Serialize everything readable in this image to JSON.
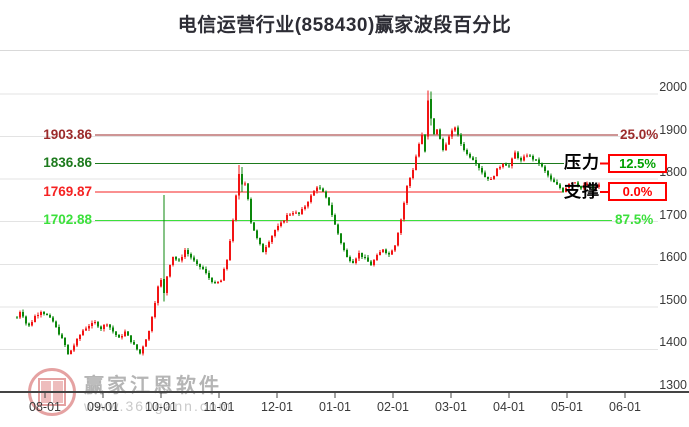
{
  "title": "电信运营行业(858430)赢家波段百分比",
  "annotations": {
    "resistance_label": "压力",
    "support_label": "支撑"
  },
  "levels": [
    {
      "label": "1903.86",
      "price": 1903.86,
      "pct": "25.0%",
      "style": "plain",
      "line_color": "#9c2b2b",
      "label_color": "#9c2b2b",
      "pct_color": "#9c2b2b"
    },
    {
      "label": "1836.86",
      "price": 1836.86,
      "pct": "12.5%",
      "style": "boxed",
      "tag": "压力",
      "line_color": "#1d7a1d",
      "label_color": "#1d7a1d",
      "pct_color": "#00a000"
    },
    {
      "label": "1769.87",
      "price": 1769.87,
      "pct": "0.0%",
      "style": "boxed",
      "tag": "支撑",
      "line_color": "#f52222",
      "label_color": "#f52222",
      "pct_color": "#ff0000"
    },
    {
      "label": "1702.88",
      "price": 1702.88,
      "pct": "87.5%",
      "style": "plain",
      "line_color": "#3ce03c",
      "label_color": "#3ce03c",
      "pct_color": "#3ce03c"
    }
  ],
  "watermark": {
    "brand": "赢家江恩软件",
    "url": "www.360gann.com",
    "logo_color": "#e5a2a2"
  },
  "chart_data": {
    "type": "candlestick",
    "title": "电信运营行业(858430)赢家波段百分比",
    "grid": true,
    "legend_position": "none",
    "up_color": "#f21414",
    "down_color": "#0c870c",
    "axis_color": "#444444",
    "grid_color": "#e3e3e3",
    "x_axis": {
      "tick_labels": [
        "08-01",
        "09-01",
        "10-01",
        "11-01",
        "12-01",
        "01-01",
        "02-01",
        "03-01",
        "04-01",
        "05-01",
        "06-01"
      ]
    },
    "y_axis": {
      "tick_labels": [
        2000,
        1900,
        1800,
        1700,
        1600,
        1500,
        1400,
        1300
      ],
      "min": 1300,
      "max": 2008
    },
    "candle_count": 195,
    "close_path_keyframes": [
      [
        0,
        1475
      ],
      [
        1,
        1490
      ],
      [
        2,
        1480
      ],
      [
        3,
        1462
      ],
      [
        4,
        1455
      ],
      [
        6,
        1478
      ],
      [
        8,
        1490
      ],
      [
        10,
        1480
      ],
      [
        12,
        1465
      ],
      [
        14,
        1438
      ],
      [
        16,
        1410
      ],
      [
        17,
        1388
      ],
      [
        18,
        1398
      ],
      [
        20,
        1422
      ],
      [
        22,
        1445
      ],
      [
        24,
        1456
      ],
      [
        26,
        1463
      ],
      [
        28,
        1450
      ],
      [
        30,
        1461
      ],
      [
        32,
        1442
      ],
      [
        34,
        1426
      ],
      [
        36,
        1441
      ],
      [
        38,
        1420
      ],
      [
        40,
        1400
      ],
      [
        41,
        1391
      ],
      [
        42,
        1408
      ],
      [
        44,
        1442
      ],
      [
        45,
        1478
      ],
      [
        46,
        1512
      ],
      [
        47,
        1546
      ],
      [
        48,
        1562
      ],
      [
        50,
        1572
      ],
      [
        51,
        1601
      ],
      [
        52,
        1618
      ],
      [
        54,
        1606
      ],
      [
        56,
        1633
      ],
      [
        58,
        1616
      ],
      [
        60,
        1598
      ],
      [
        62,
        1589
      ],
      [
        64,
        1568
      ],
      [
        66,
        1553
      ],
      [
        68,
        1562
      ],
      [
        70,
        1611
      ],
      [
        72,
        1701
      ],
      [
        73,
        1760
      ],
      [
        76,
        1790
      ],
      [
        77,
        1756
      ],
      [
        78,
        1700
      ],
      [
        80,
        1660
      ],
      [
        82,
        1630
      ],
      [
        84,
        1655
      ],
      [
        86,
        1680
      ],
      [
        88,
        1695
      ],
      [
        90,
        1715
      ],
      [
        92,
        1722
      ],
      [
        94,
        1718
      ],
      [
        96,
        1737
      ],
      [
        98,
        1760
      ],
      [
        100,
        1783
      ],
      [
        102,
        1769
      ],
      [
        104,
        1741
      ],
      [
        106,
        1693
      ],
      [
        108,
        1651
      ],
      [
        110,
        1616
      ],
      [
        112,
        1606
      ],
      [
        114,
        1626
      ],
      [
        116,
        1613
      ],
      [
        118,
        1599
      ],
      [
        120,
        1619
      ],
      [
        122,
        1636
      ],
      [
        124,
        1623
      ],
      [
        126,
        1646
      ],
      [
        128,
        1706
      ],
      [
        130,
        1783
      ],
      [
        132,
        1823
      ],
      [
        134,
        1883
      ],
      [
        135,
        1903
      ],
      [
        136,
        1864
      ],
      [
        140,
        1918
      ],
      [
        142,
        1869
      ],
      [
        144,
        1899
      ],
      [
        146,
        1923
      ],
      [
        148,
        1883
      ],
      [
        150,
        1859
      ],
      [
        152,
        1848
      ],
      [
        154,
        1828
      ],
      [
        156,
        1806
      ],
      [
        158,
        1798
      ],
      [
        160,
        1822
      ],
      [
        162,
        1838
      ],
      [
        164,
        1830
      ],
      [
        166,
        1862
      ],
      [
        168,
        1842
      ],
      [
        170,
        1858
      ],
      [
        172,
        1848
      ],
      [
        174,
        1838
      ],
      [
        176,
        1818
      ],
      [
        178,
        1798
      ],
      [
        180,
        1786
      ],
      [
        182,
        1772
      ],
      [
        184,
        1790
      ],
      [
        186,
        1794
      ],
      [
        188,
        1778
      ],
      [
        190,
        1790
      ],
      [
        192,
        1776
      ],
      [
        194,
        1786
      ]
    ],
    "spikes": [
      {
        "i": 49,
        "open": 1565,
        "close": 1532,
        "high": 1763,
        "low": 1512
      },
      {
        "i": 74,
        "open": 1762,
        "close": 1812,
        "high": 1833,
        "low": 1752
      },
      {
        "i": 75,
        "open": 1812,
        "close": 1788,
        "high": 1828,
        "low": 1770
      },
      {
        "i": 137,
        "open": 1900,
        "close": 1985,
        "high": 2008,
        "low": 1893
      },
      {
        "i": 138,
        "open": 1988,
        "close": 1942,
        "high": 2006,
        "low": 1926
      }
    ]
  }
}
